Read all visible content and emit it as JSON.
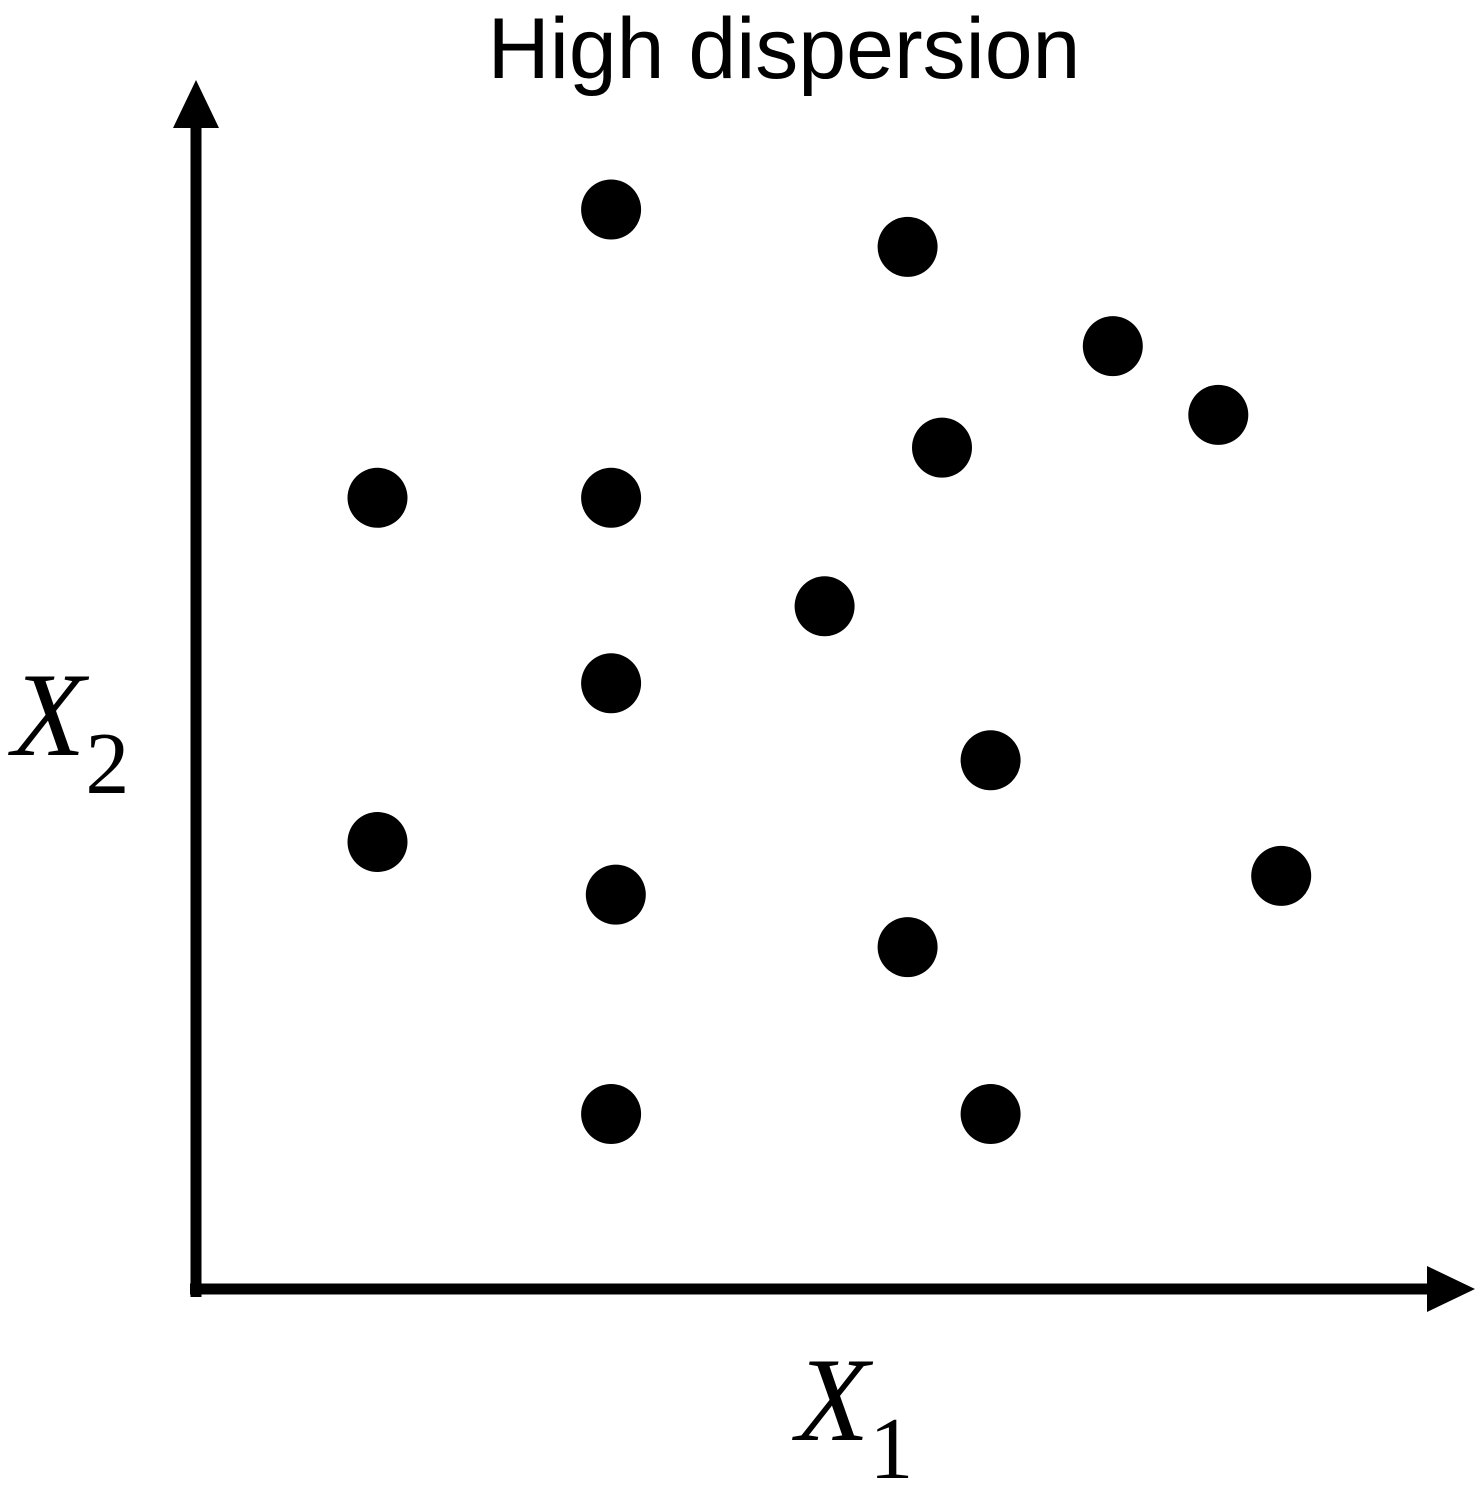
{
  "chart_data": {
    "type": "scatter",
    "title": "High dispersion",
    "xlabel": {
      "var": "X",
      "sub": "1"
    },
    "ylabel": {
      "var": "X",
      "sub": "2"
    },
    "xlim": [
      0,
      100
    ],
    "ylim": [
      0,
      100
    ],
    "grid": false,
    "legend": "none",
    "colors": {
      "axis": "#000000",
      "point": "#000000",
      "background": "#ffffff"
    },
    "points": [
      {
        "x": 35.0,
        "y": 92.5
      },
      {
        "x": 60.0,
        "y": 89.3
      },
      {
        "x": 77.3,
        "y": 80.8
      },
      {
        "x": 86.2,
        "y": 74.9
      },
      {
        "x": 62.9,
        "y": 72.1
      },
      {
        "x": 15.3,
        "y": 67.8
      },
      {
        "x": 35.0,
        "y": 67.8
      },
      {
        "x": 53.0,
        "y": 58.5
      },
      {
        "x": 35.0,
        "y": 51.9
      },
      {
        "x": 67.0,
        "y": 45.3
      },
      {
        "x": 15.3,
        "y": 38.3
      },
      {
        "x": 91.5,
        "y": 35.4
      },
      {
        "x": 35.4,
        "y": 33.8
      },
      {
        "x": 60.0,
        "y": 29.3
      },
      {
        "x": 35.0,
        "y": 15.0
      },
      {
        "x": 67.0,
        "y": 15.0
      }
    ]
  }
}
